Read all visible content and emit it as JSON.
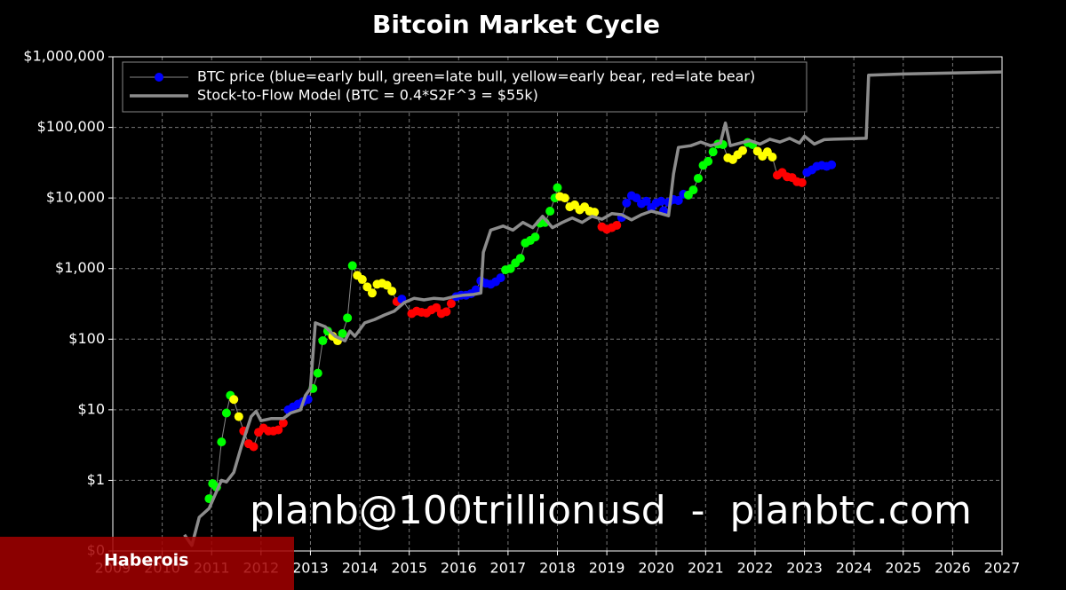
{
  "chart_data": {
    "type": "scatter",
    "title": "Bitcoin Market Cycle",
    "annotation": "planb@100trillionusd  -  planbtc.com",
    "watermark": "Haberois",
    "xlim": [
      2009,
      2027
    ],
    "xticks": [
      2009,
      2010,
      2011,
      2012,
      2013,
      2014,
      2015,
      2016,
      2017,
      2018,
      2019,
      2020,
      2021,
      2022,
      2023,
      2024,
      2025,
      2026,
      2027
    ],
    "ylim": [
      0.1,
      1000000
    ],
    "log_y": true,
    "yticks": [
      {
        "value": 0.1,
        "label": "$0"
      },
      {
        "value": 1,
        "label": "$1"
      },
      {
        "value": 10,
        "label": "$10"
      },
      {
        "value": 100,
        "label": "$100"
      },
      {
        "value": 1000,
        "label": "$1,000"
      },
      {
        "value": 10000,
        "label": "$10,000"
      },
      {
        "value": 100000,
        "label": "$100,000"
      },
      {
        "value": 1000000,
        "label": "$1,000,000"
      }
    ],
    "grid": true,
    "legend": "upper left",
    "series": [
      {
        "name": "BTC price (blue=early bull, green=late bull, yellow=early bear, red=late bear)",
        "type": "scatter",
        "color": "#0000ff",
        "line_color": "#888888",
        "x": [
          2010.95,
          2011.02,
          2011.1,
          2011.2,
          2011.3,
          2011.38,
          2011.45,
          2011.55,
          2011.65,
          2011.75,
          2011.85,
          2011.95,
          2012.05,
          2012.15,
          2012.25,
          2012.35,
          2012.45,
          2012.55,
          2012.65,
          2012.75,
          2012.85,
          2012.95,
          2013.05,
          2013.15,
          2013.25,
          2013.35,
          2013.45,
          2013.55,
          2013.65,
          2013.75,
          2013.85,
          2013.95,
          2014.05,
          2014.15,
          2014.25,
          2014.35,
          2014.45,
          2014.55,
          2014.65,
          2014.75,
          2014.85,
          2015.05,
          2015.15,
          2015.25,
          2015.35,
          2015.45,
          2015.55,
          2015.65,
          2015.75,
          2015.85,
          2015.95,
          2016.05,
          2016.15,
          2016.25,
          2016.35,
          2016.45,
          2016.55,
          2016.65,
          2016.75,
          2016.85,
          2016.95,
          2017.05,
          2017.15,
          2017.25,
          2017.35,
          2017.45,
          2017.55,
          2017.65,
          2017.75,
          2017.85,
          2017.95,
          2018.0,
          2018.05,
          2018.15,
          2018.25,
          2018.35,
          2018.45,
          2018.55,
          2018.65,
          2018.75,
          2018.9,
          2019.0,
          2019.1,
          2019.2,
          2019.3,
          2019.4,
          2019.5,
          2019.6,
          2019.7,
          2019.8,
          2019.9,
          2020.0,
          2020.1,
          2020.15,
          2020.25,
          2020.35,
          2020.45,
          2020.55,
          2020.65,
          2020.75,
          2020.85,
          2020.95,
          2021.05,
          2021.15,
          2021.25,
          2021.35,
          2021.45,
          2021.55,
          2021.65,
          2021.75,
          2021.85,
          2021.95,
          2022.05,
          2022.15,
          2022.25,
          2022.35,
          2022.45,
          2022.55,
          2022.65,
          2022.75,
          2022.85,
          2022.95,
          2023.05,
          2023.15,
          2023.25,
          2023.35,
          2023.45,
          2023.55
        ],
        "values": [
          0.55,
          0.9,
          0.8,
          3.5,
          9,
          16,
          14,
          8,
          5,
          3.3,
          3,
          4.8,
          5.5,
          5,
          5,
          5.2,
          6.5,
          10,
          11,
          12,
          13,
          14,
          20,
          33,
          95,
          130,
          110,
          95,
          120,
          200,
          1100,
          800,
          700,
          550,
          450,
          600,
          620,
          580,
          480,
          340,
          370,
          230,
          250,
          240,
          235,
          260,
          280,
          230,
          245,
          320,
          400,
          420,
          420,
          440,
          500,
          670,
          620,
          600,
          650,
          740,
          960,
          1000,
          1200,
          1400,
          2300,
          2500,
          2800,
          4400,
          4500,
          6500,
          10000,
          14000,
          10500,
          10000,
          7500,
          8000,
          6800,
          7500,
          6500,
          6300,
          3900,
          3600,
          3800,
          4100,
          5300,
          8500,
          10800,
          10000,
          8300,
          9000,
          7300,
          8500,
          9000,
          6600,
          8700,
          9500,
          9200,
          11300,
          11000,
          13000,
          19000,
          29000,
          33000,
          45000,
          58000,
          57000,
          37000,
          35000,
          41000,
          47000,
          61000,
          57000,
          46000,
          39000,
          45000,
          38000,
          21000,
          23000,
          20000,
          19500,
          17000,
          16500,
          23000,
          25000,
          28000,
          29000,
          28000,
          29500
        ],
        "point_colors": [
          "#00ff00",
          "#00ff00",
          "#00ff00",
          "#00ff00",
          "#00ff00",
          "#00ff00",
          "#ffff00",
          "#ffff00",
          "#ff0000",
          "#ff0000",
          "#ff0000",
          "#ff0000",
          "#ff0000",
          "#ff0000",
          "#ff0000",
          "#ff0000",
          "#ff0000",
          "#0000ff",
          "#0000ff",
          "#0000ff",
          "#0000ff",
          "#0000ff",
          "#00ff00",
          "#00ff00",
          "#00ff00",
          "#00ff00",
          "#ffff00",
          "#ffff00",
          "#00ff00",
          "#00ff00",
          "#00ff00",
          "#ffff00",
          "#ffff00",
          "#ffff00",
          "#ffff00",
          "#ffff00",
          "#ffff00",
          "#ffff00",
          "#ffff00",
          "#ff0000",
          "#0000ff",
          "#ff0000",
          "#ff0000",
          "#ff0000",
          "#ff0000",
          "#ff0000",
          "#ff0000",
          "#ff0000",
          "#ff0000",
          "#ff0000",
          "#0000ff",
          "#0000ff",
          "#0000ff",
          "#0000ff",
          "#0000ff",
          "#0000ff",
          "#0000ff",
          "#0000ff",
          "#0000ff",
          "#0000ff",
          "#00ff00",
          "#00ff00",
          "#00ff00",
          "#00ff00",
          "#00ff00",
          "#00ff00",
          "#00ff00",
          "#00ff00",
          "#00ff00",
          "#00ff00",
          "#00ff00",
          "#00ff00",
          "#ffff00",
          "#ffff00",
          "#ffff00",
          "#ffff00",
          "#ffff00",
          "#ffff00",
          "#ffff00",
          "#ffff00",
          "#ff0000",
          "#ff0000",
          "#ff0000",
          "#ff0000",
          "#0000ff",
          "#0000ff",
          "#0000ff",
          "#0000ff",
          "#0000ff",
          "#0000ff",
          "#0000ff",
          "#0000ff",
          "#0000ff",
          "#0000ff",
          "#0000ff",
          "#0000ff",
          "#0000ff",
          "#0000ff",
          "#00ff00",
          "#00ff00",
          "#00ff00",
          "#00ff00",
          "#00ff00",
          "#00ff00",
          "#00ff00",
          "#00ff00",
          "#ffff00",
          "#ffff00",
          "#ffff00",
          "#ffff00",
          "#00ff00",
          "#00ff00",
          "#ffff00",
          "#ffff00",
          "#ffff00",
          "#ffff00",
          "#ff0000",
          "#ff0000",
          "#ff0000",
          "#ff0000",
          "#ff0000",
          "#ff0000",
          "#0000ff",
          "#0000ff",
          "#0000ff",
          "#0000ff",
          "#0000ff",
          "#0000ff"
        ]
      },
      {
        "name": "Stock-to-Flow Model (BTC = 0.4*S2F^3 = $55k)",
        "type": "line",
        "color": "#8c8c8c",
        "x": [
          2010.45,
          2010.6,
          2010.75,
          2010.95,
          2011.1,
          2011.2,
          2011.3,
          2011.45,
          2011.6,
          2011.8,
          2011.9,
          2012.0,
          2012.2,
          2012.45,
          2012.6,
          2012.8,
          2012.9,
          2013.0,
          2013.1,
          2013.3,
          2013.5,
          2013.7,
          2013.8,
          2013.9,
          2014.1,
          2014.3,
          2014.5,
          2014.7,
          2014.9,
          2015.1,
          2015.3,
          2015.5,
          2015.7,
          2015.9,
          2016.1,
          2016.3,
          2016.45,
          2016.5,
          2016.65,
          2016.9,
          2017.1,
          2017.3,
          2017.5,
          2017.7,
          2017.9,
          2018.1,
          2018.3,
          2018.5,
          2018.7,
          2018.9,
          2019.1,
          2019.3,
          2019.5,
          2019.7,
          2019.9,
          2020.1,
          2020.25,
          2020.35,
          2020.45,
          2020.7,
          2020.9,
          2021.1,
          2021.3,
          2021.4,
          2021.5,
          2021.7,
          2021.9,
          2022.1,
          2022.3,
          2022.5,
          2022.7,
          2022.9,
          2023.0,
          2023.2,
          2023.4,
          2023.6,
          2024.25,
          2024.3,
          2025,
          2026,
          2027
        ],
        "values": [
          0.17,
          0.12,
          0.3,
          0.4,
          0.7,
          1.0,
          0.95,
          1.3,
          3,
          8,
          9.5,
          7,
          7.5,
          7.5,
          9,
          10,
          16,
          20,
          170,
          150,
          110,
          95,
          130,
          110,
          170,
          190,
          220,
          250,
          330,
          380,
          360,
          380,
          370,
          400,
          420,
          430,
          450,
          1700,
          3500,
          4000,
          3500,
          4500,
          3800,
          5500,
          3800,
          4500,
          5200,
          4500,
          5500,
          5000,
          6000,
          5800,
          4900,
          5800,
          6500,
          6000,
          5600,
          22000,
          52000,
          55000,
          62000,
          55000,
          60000,
          115000,
          55000,
          60000,
          65000,
          58000,
          68000,
          62000,
          70000,
          60000,
          75000,
          58000,
          67000,
          68000,
          70000,
          550000,
          570000,
          590000,
          610000
        ]
      }
    ]
  }
}
